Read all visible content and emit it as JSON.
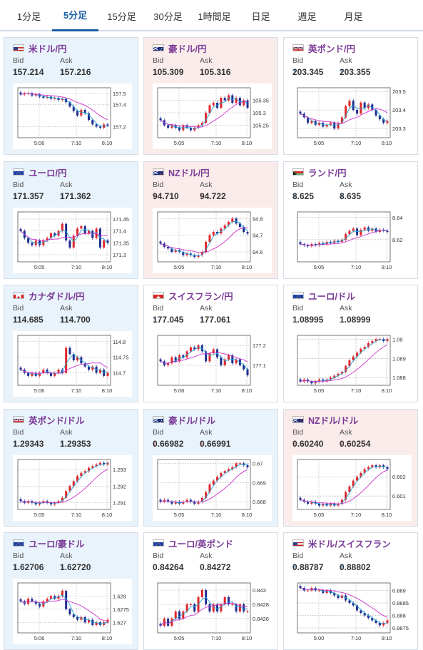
{
  "tabs": [
    {
      "label": "1分足",
      "active": false
    },
    {
      "label": "5分足",
      "active": true
    },
    {
      "label": "15分足",
      "active": false
    },
    {
      "label": "30分足",
      "active": false
    },
    {
      "label": "1時間足",
      "active": false
    },
    {
      "label": "日足",
      "active": false
    },
    {
      "label": "週足",
      "active": false
    },
    {
      "label": "月足",
      "active": false
    }
  ],
  "labels": {
    "bid": "Bid",
    "ask": "Ask"
  },
  "colors": {
    "up": "#e0262b",
    "down": "#1f2d8f",
    "ma_short": "#22a7d8",
    "ma_long": "#cc33cc",
    "arrow_up": "#1a73d0",
    "arrow_down": "#d23a3a",
    "title": "#7a3a96"
  },
  "cards": [
    {
      "name": "usdjpy",
      "title": "米ドル/円",
      "flag": [
        "us",
        "jp"
      ],
      "bg": "blue",
      "bid": "157.214",
      "ask": "157.216",
      "bid_dir": "up",
      "ask_dir": "up",
      "yticks": [
        "157.5",
        "157.4",
        "157.2"
      ],
      "xticks": [
        "5:06",
        "7:10",
        "8:10"
      ],
      "ylim": [
        157.1,
        157.55
      ],
      "series": [
        157.49,
        157.5,
        157.5,
        157.48,
        157.49,
        157.47,
        157.46,
        157.47,
        157.45,
        157.46,
        157.44,
        157.45,
        157.42,
        157.38,
        157.34,
        157.3,
        157.35,
        157.32,
        157.26,
        157.22,
        157.2,
        157.19,
        157.22,
        157.21
      ]
    },
    {
      "name": "audjpy",
      "title": "豪ドル/円",
      "flag": [
        "au",
        "jp"
      ],
      "bg": "pink",
      "bid": "105.309",
      "ask": "105.316",
      "bid_dir": "down",
      "ask_dir": "down",
      "yticks": [
        "105.35",
        "105.3",
        "105.25"
      ],
      "xticks": [
        "5:05",
        "7:10",
        "8:10"
      ],
      "ylim": [
        105.2,
        105.4
      ],
      "series": [
        105.27,
        105.25,
        105.24,
        105.25,
        105.24,
        105.23,
        105.25,
        105.24,
        105.23,
        105.24,
        105.25,
        105.26,
        105.3,
        105.33,
        105.34,
        105.32,
        105.36,
        105.35,
        105.37,
        105.34,
        105.36,
        105.33,
        105.35,
        105.32
      ]
    },
    {
      "name": "gbpjpy",
      "title": "英ポンド/円",
      "flag": [
        "gb",
        "jp"
      ],
      "bg": "white",
      "bid": "203.345",
      "ask": "203.355",
      "bid_dir": "up",
      "ask_dir": "up",
      "yticks": [
        "203.5",
        "203.4",
        "203.3"
      ],
      "xticks": [
        "5:05",
        "7:10",
        "8:10"
      ],
      "ylim": [
        203.25,
        203.52
      ],
      "series": [
        203.38,
        203.36,
        203.33,
        203.34,
        203.32,
        203.33,
        203.31,
        203.32,
        203.33,
        203.3,
        203.33,
        203.36,
        203.42,
        203.45,
        203.4,
        203.38,
        203.44,
        203.41,
        203.43,
        203.4,
        203.37,
        203.35,
        203.33,
        203.34
      ]
    },
    {
      "name": "eurjpy",
      "title": "ユーロ/円",
      "flag": [
        "eu",
        "jp"
      ],
      "bg": "blue",
      "bid": "171.357",
      "ask": "171.362",
      "bid_dir": "up",
      "ask_dir": "up",
      "yticks": [
        "171.45",
        "171.4",
        "171.35",
        "171.3"
      ],
      "xticks": [
        "5:05",
        "7:10",
        "8:10"
      ],
      "ylim": [
        171.27,
        171.48
      ],
      "series": [
        171.4,
        171.37,
        171.35,
        171.34,
        171.36,
        171.34,
        171.36,
        171.37,
        171.39,
        171.38,
        171.4,
        171.43,
        171.36,
        171.33,
        171.38,
        171.41,
        171.42,
        171.39,
        171.4,
        171.37,
        171.41,
        171.33,
        171.36,
        171.35
      ]
    },
    {
      "name": "nzdjpy",
      "title": "NZドル/円",
      "flag": [
        "nz",
        "jp"
      ],
      "bg": "pink",
      "bid": "94.710",
      "ask": "94.722",
      "bid_dir": "down",
      "ask_dir": "down",
      "yticks": [
        "94.8",
        "94.7",
        "94.6"
      ],
      "xticks": [
        "5:05",
        "7:10",
        "8:10"
      ],
      "ylim": [
        94.54,
        94.84
      ],
      "series": [
        94.65,
        94.63,
        94.62,
        94.6,
        94.61,
        94.6,
        94.58,
        94.59,
        94.58,
        94.57,
        94.58,
        94.6,
        94.66,
        94.7,
        94.72,
        94.71,
        94.74,
        94.76,
        94.78,
        94.8,
        94.77,
        94.75,
        94.72,
        94.71
      ]
    },
    {
      "name": "zarjpy",
      "title": "ランド/円",
      "flag": [
        "za",
        "jp"
      ],
      "bg": "white",
      "bid": "8.625",
      "ask": "8.635",
      "bid_dir": "up",
      "ask_dir": "up",
      "yticks": [
        "8.64",
        "8.62"
      ],
      "xticks": [
        "5:05",
        "7:10",
        "8:10"
      ],
      "ylim": [
        8.6,
        8.645
      ],
      "series": [
        8.616,
        8.615,
        8.614,
        8.616,
        8.615,
        8.617,
        8.616,
        8.618,
        8.617,
        8.619,
        8.618,
        8.62,
        8.625,
        8.628,
        8.63,
        8.624,
        8.629,
        8.631,
        8.628,
        8.63,
        8.627,
        8.629,
        8.628,
        8.627
      ]
    },
    {
      "name": "cadjpy",
      "title": "カナダドル/円",
      "flag": [
        "ca",
        "jp"
      ],
      "bg": "blue",
      "bid": "114.685",
      "ask": "114.700",
      "bid_dir": "up",
      "ask_dir": "up",
      "yticks": [
        "114.8",
        "114.75",
        "114.7"
      ],
      "xticks": [
        "5:06",
        "7:10",
        "8:10"
      ],
      "ylim": [
        114.66,
        114.82
      ],
      "series": [
        114.71,
        114.7,
        114.69,
        114.7,
        114.69,
        114.7,
        114.71,
        114.7,
        114.69,
        114.7,
        114.71,
        114.7,
        114.78,
        114.76,
        114.74,
        114.75,
        114.73,
        114.72,
        114.71,
        114.72,
        114.7,
        114.71,
        114.69,
        114.7
      ]
    },
    {
      "name": "chfjpy",
      "title": "スイスフラン/円",
      "flag": [
        "ch",
        "jp"
      ],
      "bg": "white",
      "bid": "177.045",
      "ask": "177.061",
      "bid_dir": "up",
      "ask_dir": "up",
      "yticks": [
        "177.2",
        "177.1"
      ],
      "xticks": [
        "5:06",
        "7:10",
        "8:10"
      ],
      "ylim": [
        177.0,
        177.25
      ],
      "series": [
        177.12,
        177.1,
        177.11,
        177.14,
        177.12,
        177.15,
        177.14,
        177.17,
        177.19,
        177.18,
        177.2,
        177.17,
        177.12,
        177.16,
        177.18,
        177.14,
        177.1,
        177.13,
        177.15,
        177.11,
        177.13,
        177.1,
        177.08,
        177.05
      ]
    },
    {
      "name": "eurusd",
      "title": "ユーロ/ドル",
      "flag": [
        "eu",
        "us"
      ],
      "bg": "white",
      "bid": "1.08995",
      "ask": "1.08999",
      "bid_dir": "none",
      "ask_dir": "none",
      "yticks": [
        "1.09",
        "1.089",
        "1.088"
      ],
      "xticks": [
        "5:05",
        "7:10",
        "8:10"
      ],
      "ylim": [
        1.0876,
        1.0902
      ],
      "series": [
        1.0878,
        1.0879,
        1.0878,
        1.0877,
        1.0878,
        1.0879,
        1.0878,
        1.0879,
        1.088,
        1.0881,
        1.0882,
        1.0883,
        1.0886,
        1.0889,
        1.0891,
        1.0893,
        1.0895,
        1.0896,
        1.0898,
        1.0899,
        1.09,
        1.09,
        1.0899,
        1.09
      ]
    },
    {
      "name": "gbpusd",
      "title": "英ポンド/ドル",
      "flag": [
        "gb",
        "us"
      ],
      "bg": "blue",
      "bid": "1.29343",
      "ask": "1.29353",
      "bid_dir": "up",
      "ask_dir": "up",
      "yticks": [
        "1.293",
        "1.292",
        "1.291"
      ],
      "xticks": [
        "5:05",
        "7:10",
        "8:10"
      ],
      "ylim": [
        1.2906,
        1.2936
      ],
      "series": [
        1.2911,
        1.291,
        1.2911,
        1.291,
        1.2909,
        1.291,
        1.2911,
        1.291,
        1.2909,
        1.291,
        1.2911,
        1.2913,
        1.2917,
        1.292,
        1.2923,
        1.2926,
        1.2928,
        1.2929,
        1.2931,
        1.2932,
        1.2933,
        1.2934,
        1.2933,
        1.2934
      ]
    },
    {
      "name": "audusd",
      "title": "豪ドル/ドル",
      "flag": [
        "au",
        "us"
      ],
      "bg": "blue",
      "bid": "0.66982",
      "ask": "0.66991",
      "bid_dir": "down",
      "ask_dir": "down",
      "yticks": [
        "0.67",
        "0.669",
        "0.668"
      ],
      "xticks": [
        "5:05",
        "7:10",
        "8:10"
      ],
      "ylim": [
        0.6676,
        0.6702
      ],
      "series": [
        0.668,
        0.6681,
        0.668,
        0.6679,
        0.668,
        0.6679,
        0.668,
        0.6681,
        0.668,
        0.6679,
        0.668,
        0.6682,
        0.6685,
        0.6689,
        0.6691,
        0.6693,
        0.6695,
        0.6696,
        0.6697,
        0.6698,
        0.67,
        0.67,
        0.6699,
        0.6698
      ]
    },
    {
      "name": "nzdusd",
      "title": "NZドル/ドル",
      "flag": [
        "nz",
        "us"
      ],
      "bg": "pink",
      "bid": "0.60240",
      "ask": "0.60254",
      "bid_dir": "down",
      "ask_dir": "down",
      "yticks": [
        "0.602",
        "0.601"
      ],
      "xticks": [
        "5:05",
        "7:10",
        "8:10"
      ],
      "ylim": [
        0.6003,
        0.6029
      ],
      "series": [
        0.6008,
        0.6007,
        0.6006,
        0.6007,
        0.6006,
        0.6005,
        0.6006,
        0.6005,
        0.6006,
        0.6005,
        0.6006,
        0.6008,
        0.6012,
        0.6015,
        0.6018,
        0.602,
        0.6022,
        0.6024,
        0.6025,
        0.6026,
        0.6025,
        0.6026,
        0.6025,
        0.6024
      ]
    },
    {
      "name": "euraud",
      "title": "ユーロ/豪ドル",
      "flag": [
        "eu",
        "au"
      ],
      "bg": "blue",
      "bid": "1.62706",
      "ask": "1.62720",
      "bid_dir": "up",
      "ask_dir": "up",
      "yticks": [
        "1.628",
        "1.6275",
        "1.627"
      ],
      "xticks": [
        "5:06",
        "7:10",
        "8:10"
      ],
      "ylim": [
        1.6266,
        1.6285
      ],
      "series": [
        1.6278,
        1.6277,
        1.6279,
        1.6278,
        1.6277,
        1.6276,
        1.6278,
        1.6279,
        1.628,
        1.6279,
        1.628,
        1.6282,
        1.6275,
        1.6273,
        1.6272,
        1.6271,
        1.6272,
        1.627,
        1.6271,
        1.6269,
        1.627,
        1.6269,
        1.627,
        1.6271
      ]
    },
    {
      "name": "eurgbp",
      "title": "ユーロ/英ポンド",
      "flag": [
        "eu",
        "gb"
      ],
      "bg": "white",
      "bid": "0.84264",
      "ask": "0.84272",
      "bid_dir": "none",
      "ask_dir": "none",
      "yticks": [
        "0.843",
        "0.8428",
        "0.8426"
      ],
      "xticks": [
        "5:05",
        "7:10",
        "8:10"
      ],
      "ylim": [
        0.8424,
        0.8431
      ],
      "series": [
        0.8425,
        0.8426,
        0.8425,
        0.8426,
        0.8427,
        0.8426,
        0.8427,
        0.8428,
        0.8428,
        0.8427,
        0.8429,
        0.843,
        0.8428,
        0.8427,
        0.8428,
        0.8427,
        0.8428,
        0.8429,
        0.8428,
        0.8428,
        0.8427,
        0.8428,
        0.8427,
        0.8427
      ]
    },
    {
      "name": "usdchf",
      "title": "米ドル/スイスフラン",
      "flag": [
        "us",
        "ch"
      ],
      "bg": "white",
      "bid": "0.88787",
      "ask": "0.88802",
      "bid_dir": "up",
      "ask_dir": "up",
      "yticks": [
        "0.889",
        "0.8885",
        "0.888",
        "0.8875"
      ],
      "xticks": [
        "5:00",
        "7:10",
        "8:10"
      ],
      "ylim": [
        0.8873,
        0.8893
      ],
      "series": [
        0.8891,
        0.889,
        0.889,
        0.8891,
        0.889,
        0.889,
        0.8889,
        0.889,
        0.8889,
        0.8888,
        0.8887,
        0.8888,
        0.8886,
        0.8885,
        0.8884,
        0.8882,
        0.8881,
        0.888,
        0.8879,
        0.8878,
        0.8877,
        0.8876,
        0.8877,
        0.8878
      ]
    }
  ]
}
